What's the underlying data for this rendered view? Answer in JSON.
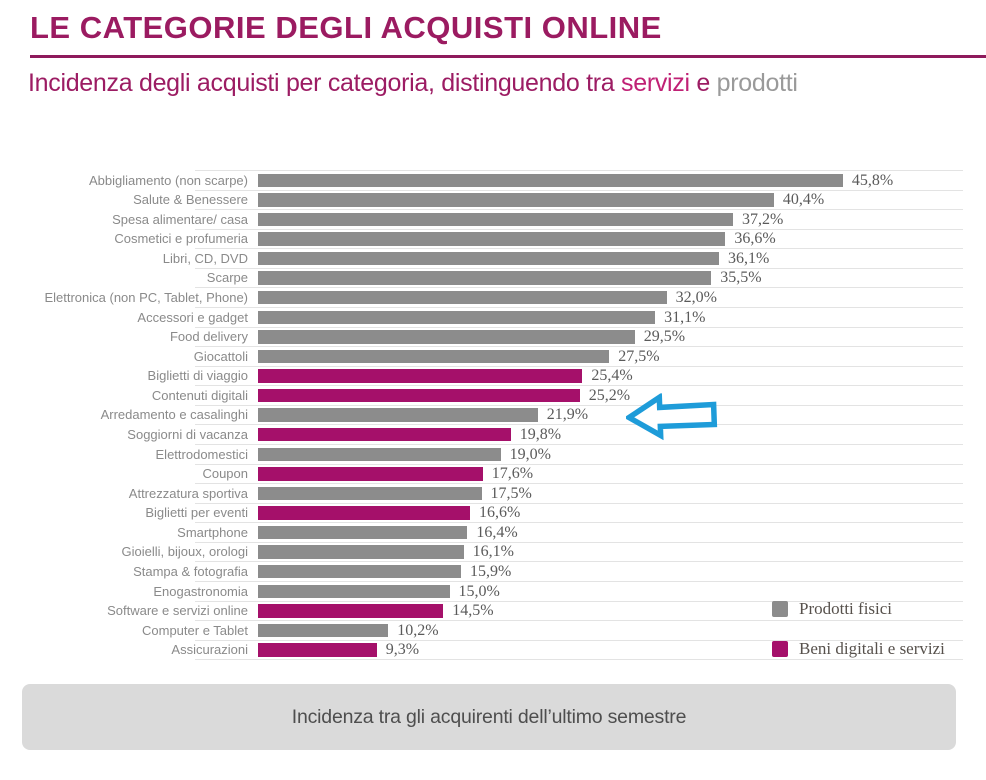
{
  "header": {
    "title": "LE CATEGORIE DEGLI ACQUISTI ONLINE",
    "title_color": "#9b1b61",
    "rule_color": "#8e1a5c",
    "subtitle_parts": [
      {
        "text": "Incidenza degli acquisti per categoria, distinguendo tra ",
        "color": "#9c1c63"
      },
      {
        "text": "servizi",
        "color": "#c02175"
      },
      {
        "text": " e ",
        "color": "#9c1c63"
      },
      {
        "text": "prodotti",
        "color": "#9a9a9a"
      }
    ]
  },
  "chart_data": {
    "type": "bar",
    "orientation": "horizontal",
    "unit": "percent",
    "xlim": [
      0,
      50
    ],
    "grid": true,
    "series": [
      {
        "name": "Prodotti fisici",
        "color": "#8c8c8c"
      },
      {
        "name": "Beni digitali e servizi",
        "color": "#a5106a"
      }
    ],
    "rows": [
      {
        "category": "Abbigliamento (non scarpe)",
        "value": 45.8,
        "display": "45,8%",
        "series": 0
      },
      {
        "category": "Salute & Benessere",
        "value": 40.4,
        "display": "40,4%",
        "series": 0
      },
      {
        "category": "Spesa alimentare/ casa",
        "value": 37.2,
        "display": "37,2%",
        "series": 0
      },
      {
        "category": "Cosmetici e profumeria",
        "value": 36.6,
        "display": "36,6%",
        "series": 0
      },
      {
        "category": "Libri, CD, DVD",
        "value": 36.1,
        "display": "36,1%",
        "series": 0
      },
      {
        "category": "Scarpe",
        "value": 35.5,
        "display": "35,5%",
        "series": 0
      },
      {
        "category": "Elettronica (non PC, Tablet, Phone)",
        "value": 32.0,
        "display": "32,0%",
        "series": 0
      },
      {
        "category": "Accessori e gadget",
        "value": 31.1,
        "display": "31,1%",
        "series": 0
      },
      {
        "category": "Food delivery",
        "value": 29.5,
        "display": "29,5%",
        "series": 0
      },
      {
        "category": "Giocattoli",
        "value": 27.5,
        "display": "27,5%",
        "series": 0
      },
      {
        "category": "Biglietti di viaggio",
        "value": 25.4,
        "display": "25,4%",
        "series": 1
      },
      {
        "category": "Contenuti digitali",
        "value": 25.2,
        "display": "25,2%",
        "series": 1
      },
      {
        "category": "Arredamento e casalinghi",
        "value": 21.9,
        "display": "21,9%",
        "series": 0
      },
      {
        "category": "Soggiorni di vacanza",
        "value": 19.8,
        "display": "19,8%",
        "series": 1
      },
      {
        "category": "Elettrodomestici",
        "value": 19.0,
        "display": "19,0%",
        "series": 0
      },
      {
        "category": "Coupon",
        "value": 17.6,
        "display": "17,6%",
        "series": 1
      },
      {
        "category": "Attrezzatura sportiva",
        "value": 17.5,
        "display": "17,5%",
        "series": 0
      },
      {
        "category": "Biglietti per eventi",
        "value": 16.6,
        "display": "16,6%",
        "series": 1
      },
      {
        "category": "Smartphone",
        "value": 16.4,
        "display": "16,4%",
        "series": 0
      },
      {
        "category": "Gioielli, bijoux, orologi",
        "value": 16.1,
        "display": "16,1%",
        "series": 0
      },
      {
        "category": "Stampa & fotografia",
        "value": 15.9,
        "display": "15,9%",
        "series": 0
      },
      {
        "category": "Enogastronomia",
        "value": 15.0,
        "display": "15,0%",
        "series": 0
      },
      {
        "category": "Software e servizi online",
        "value": 14.5,
        "display": "14,5%",
        "series": 1
      },
      {
        "category": "Computer e Tablet",
        "value": 10.2,
        "display": "10,2%",
        "series": 0
      },
      {
        "category": "Assicurazioni",
        "value": 9.3,
        "display": "9,3%",
        "series": 1
      }
    ],
    "legend": {
      "position": "bottom-right",
      "entries": [
        {
          "label": "Prodotti fisici",
          "color": "#8c8c8c"
        },
        {
          "label": "Beni digitali e servizi",
          "color": "#a5106a"
        }
      ]
    },
    "annotation": {
      "shape": "left-arrow",
      "color": "#1e9cd9",
      "points_at_category": "Arredamento e casalinghi",
      "points_at_value": "21,9%"
    }
  },
  "footer": {
    "caption": "Incidenza tra gli acquirenti dell’ultimo semestre"
  }
}
